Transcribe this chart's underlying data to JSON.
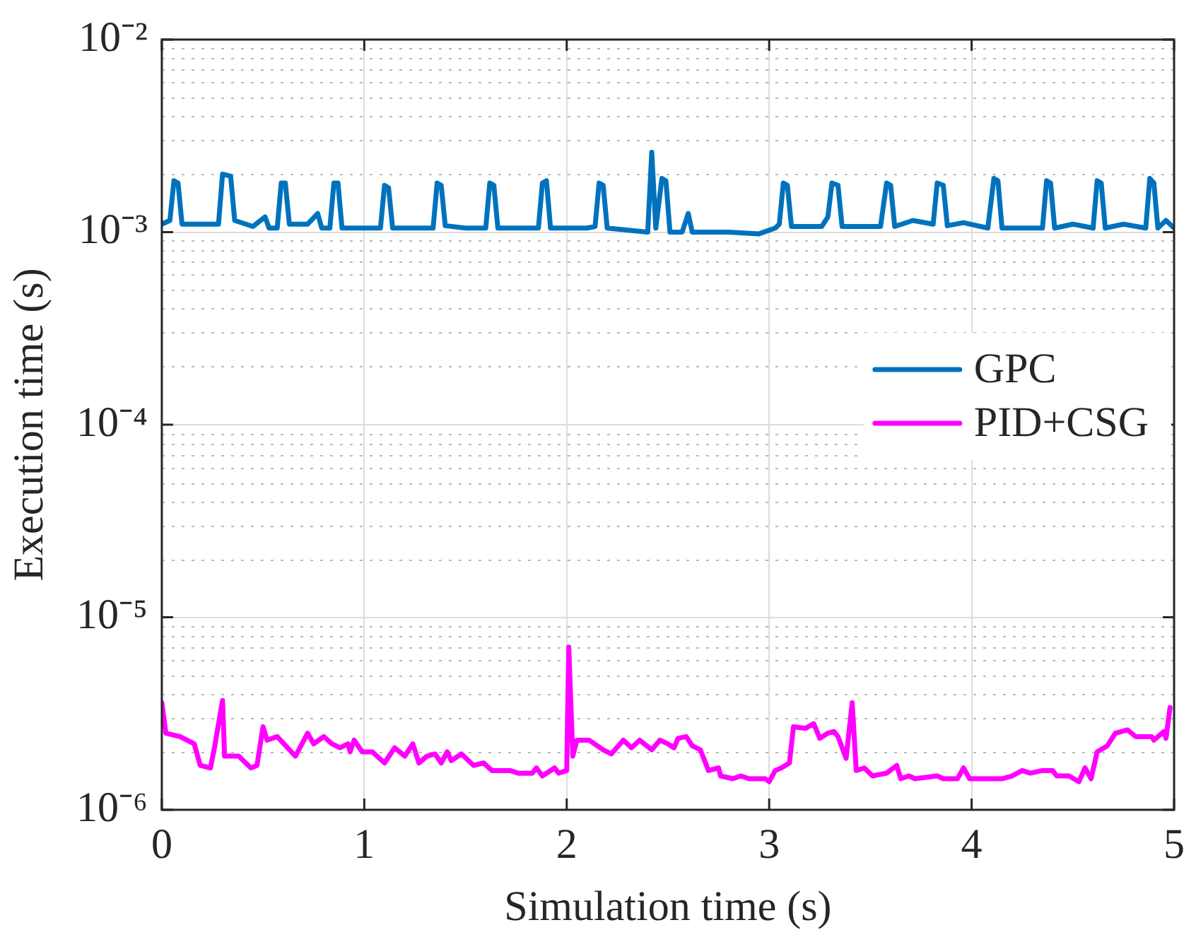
{
  "chart_data": {
    "type": "line",
    "xlabel": "Simulation time (s)",
    "ylabel": "Execution time (s)",
    "xlim": [
      0,
      5
    ],
    "xticks": [
      0,
      1,
      2,
      3,
      4,
      5
    ],
    "ylim": [
      1e-06,
      0.01
    ],
    "yticks": [
      {
        "value": 1e-06,
        "label": "10⁻⁶"
      },
      {
        "value": 1e-05,
        "label": "10⁻⁵"
      },
      {
        "value": 0.0001,
        "label": "10⁻⁴"
      },
      {
        "value": 0.001,
        "label": "10⁻³"
      },
      {
        "value": 0.01,
        "label": "10⁻²"
      }
    ],
    "log": "y",
    "grid": true,
    "legend": "right",
    "marker": "none",
    "line_style": "solid",
    "series": [
      {
        "name": "GPC",
        "color": "#0072bd",
        "x": [
          0.0,
          0.04,
          0.06,
          0.08,
          0.1,
          0.2,
          0.28,
          0.3,
          0.34,
          0.36,
          0.45,
          0.51,
          0.53,
          0.57,
          0.59,
          0.61,
          0.63,
          0.72,
          0.77,
          0.79,
          0.83,
          0.85,
          0.87,
          0.89,
          1.08,
          1.1,
          1.12,
          1.14,
          1.34,
          1.36,
          1.38,
          1.4,
          1.5,
          1.6,
          1.62,
          1.64,
          1.66,
          1.86,
          1.88,
          1.9,
          1.92,
          2.1,
          2.14,
          2.16,
          2.18,
          2.2,
          2.4,
          2.42,
          2.44,
          2.47,
          2.49,
          2.51,
          2.57,
          2.6,
          2.62,
          2.8,
          2.95,
          3.03,
          3.05,
          3.07,
          3.09,
          3.11,
          3.26,
          3.29,
          3.31,
          3.34,
          3.36,
          3.55,
          3.58,
          3.6,
          3.62,
          3.71,
          3.81,
          3.83,
          3.86,
          3.88,
          3.96,
          4.08,
          4.11,
          4.13,
          4.15,
          4.35,
          4.37,
          4.39,
          4.41,
          4.5,
          4.6,
          4.62,
          4.64,
          4.66,
          4.75,
          4.86,
          4.88,
          4.9,
          4.92,
          4.96,
          5.0
        ],
        "values": [
          0.0011,
          0.00115,
          0.00185,
          0.0018,
          0.0011,
          0.0011,
          0.0011,
          0.002,
          0.00195,
          0.00115,
          0.00107,
          0.0012,
          0.00105,
          0.00105,
          0.0018,
          0.0018,
          0.0011,
          0.0011,
          0.00125,
          0.00105,
          0.00105,
          0.0018,
          0.0018,
          0.00105,
          0.00105,
          0.00175,
          0.0017,
          0.00105,
          0.00105,
          0.0018,
          0.00175,
          0.00108,
          0.00105,
          0.00105,
          0.0018,
          0.00175,
          0.00105,
          0.00105,
          0.0018,
          0.00185,
          0.00105,
          0.00105,
          0.00107,
          0.0018,
          0.00175,
          0.00105,
          0.001,
          0.0026,
          0.00105,
          0.0019,
          0.00185,
          0.001,
          0.001,
          0.00125,
          0.001,
          0.001,
          0.00098,
          0.00105,
          0.0011,
          0.0018,
          0.00175,
          0.00107,
          0.00107,
          0.0012,
          0.0018,
          0.00175,
          0.00107,
          0.00107,
          0.0018,
          0.00175,
          0.00107,
          0.00115,
          0.0011,
          0.0018,
          0.00175,
          0.00108,
          0.00112,
          0.00105,
          0.0019,
          0.00185,
          0.00105,
          0.00105,
          0.00185,
          0.0018,
          0.00105,
          0.0011,
          0.00105,
          0.00185,
          0.0018,
          0.00105,
          0.0011,
          0.00105,
          0.0019,
          0.0018,
          0.00105,
          0.00115,
          0.00105
        ]
      },
      {
        "name": "PID+CSG",
        "color": "#ff00ff",
        "x": [
          0.0,
          0.02,
          0.09,
          0.16,
          0.19,
          0.24,
          0.26,
          0.3,
          0.31,
          0.38,
          0.44,
          0.47,
          0.5,
          0.52,
          0.57,
          0.66,
          0.72,
          0.75,
          0.8,
          0.84,
          0.88,
          0.92,
          0.93,
          0.95,
          0.99,
          1.04,
          1.1,
          1.15,
          1.2,
          1.24,
          1.27,
          1.31,
          1.35,
          1.38,
          1.41,
          1.43,
          1.48,
          1.54,
          1.59,
          1.63,
          1.72,
          1.76,
          1.83,
          1.85,
          1.88,
          1.94,
          1.96,
          2.0,
          2.01,
          2.03,
          2.05,
          2.11,
          2.18,
          2.22,
          2.28,
          2.32,
          2.36,
          2.42,
          2.46,
          2.5,
          2.53,
          2.55,
          2.59,
          2.62,
          2.66,
          2.7,
          2.75,
          2.76,
          2.82,
          2.86,
          2.9,
          2.98,
          3.0,
          3.03,
          3.06,
          3.1,
          3.12,
          3.18,
          3.22,
          3.25,
          3.29,
          3.32,
          3.34,
          3.38,
          3.41,
          3.43,
          3.47,
          3.51,
          3.58,
          3.63,
          3.65,
          3.69,
          3.72,
          3.83,
          3.86,
          3.93,
          3.96,
          3.99,
          4.15,
          4.2,
          4.25,
          4.29,
          4.35,
          4.4,
          4.42,
          4.48,
          4.53,
          4.56,
          4.59,
          4.62,
          4.67,
          4.71,
          4.77,
          4.81,
          4.89,
          4.9,
          4.95,
          4.96,
          4.98
        ],
        "values": [
          3.6e-06,
          2.5e-06,
          2.4e-06,
          2.2e-06,
          1.7e-06,
          1.65e-06,
          2.1e-06,
          3.7e-06,
          1.9e-06,
          1.9e-06,
          1.65e-06,
          1.7e-06,
          2.7e-06,
          2.3e-06,
          2.4e-06,
          1.9e-06,
          2.5e-06,
          2.2e-06,
          2.4e-06,
          2.2e-06,
          2.1e-06,
          2.2e-06,
          2e-06,
          2.3e-06,
          2e-06,
          2e-06,
          1.75e-06,
          2.1e-06,
          1.9e-06,
          2.2e-06,
          1.75e-06,
          1.9e-06,
          1.95e-06,
          1.75e-06,
          2e-06,
          1.8e-06,
          1.95e-06,
          1.7e-06,
          1.75e-06,
          1.6e-06,
          1.6e-06,
          1.55e-06,
          1.55e-06,
          1.65e-06,
          1.5e-06,
          1.65e-06,
          1.55e-06,
          1.6e-06,
          7e-06,
          1.9e-06,
          2.3e-06,
          2.3e-06,
          2.05e-06,
          1.95e-06,
          2.3e-06,
          2.1e-06,
          2.3e-06,
          2.05e-06,
          2.3e-06,
          2.2e-06,
          2.1e-06,
          2.35e-06,
          2.4e-06,
          2.15e-06,
          2.05e-06,
          1.6e-06,
          1.65e-06,
          1.5e-06,
          1.45e-06,
          1.5e-06,
          1.45e-06,
          1.45e-06,
          1.4e-06,
          1.6e-06,
          1.65e-06,
          1.75e-06,
          2.7e-06,
          2.65e-06,
          2.8e-06,
          2.35e-06,
          2.5e-06,
          2.55e-06,
          2.4e-06,
          1.85e-06,
          3.6e-06,
          1.6e-06,
          1.65e-06,
          1.5e-06,
          1.55e-06,
          1.7e-06,
          1.45e-06,
          1.5e-06,
          1.45e-06,
          1.5e-06,
          1.45e-06,
          1.45e-06,
          1.65e-06,
          1.45e-06,
          1.45e-06,
          1.5e-06,
          1.6e-06,
          1.55e-06,
          1.6e-06,
          1.6e-06,
          1.5e-06,
          1.5e-06,
          1.4e-06,
          1.65e-06,
          1.45e-06,
          2e-06,
          2.15e-06,
          2.5e-06,
          2.6e-06,
          2.4e-06,
          2.4e-06,
          2.3e-06,
          2.55e-06,
          2.35e-06,
          3.4e-06
        ]
      }
    ]
  }
}
